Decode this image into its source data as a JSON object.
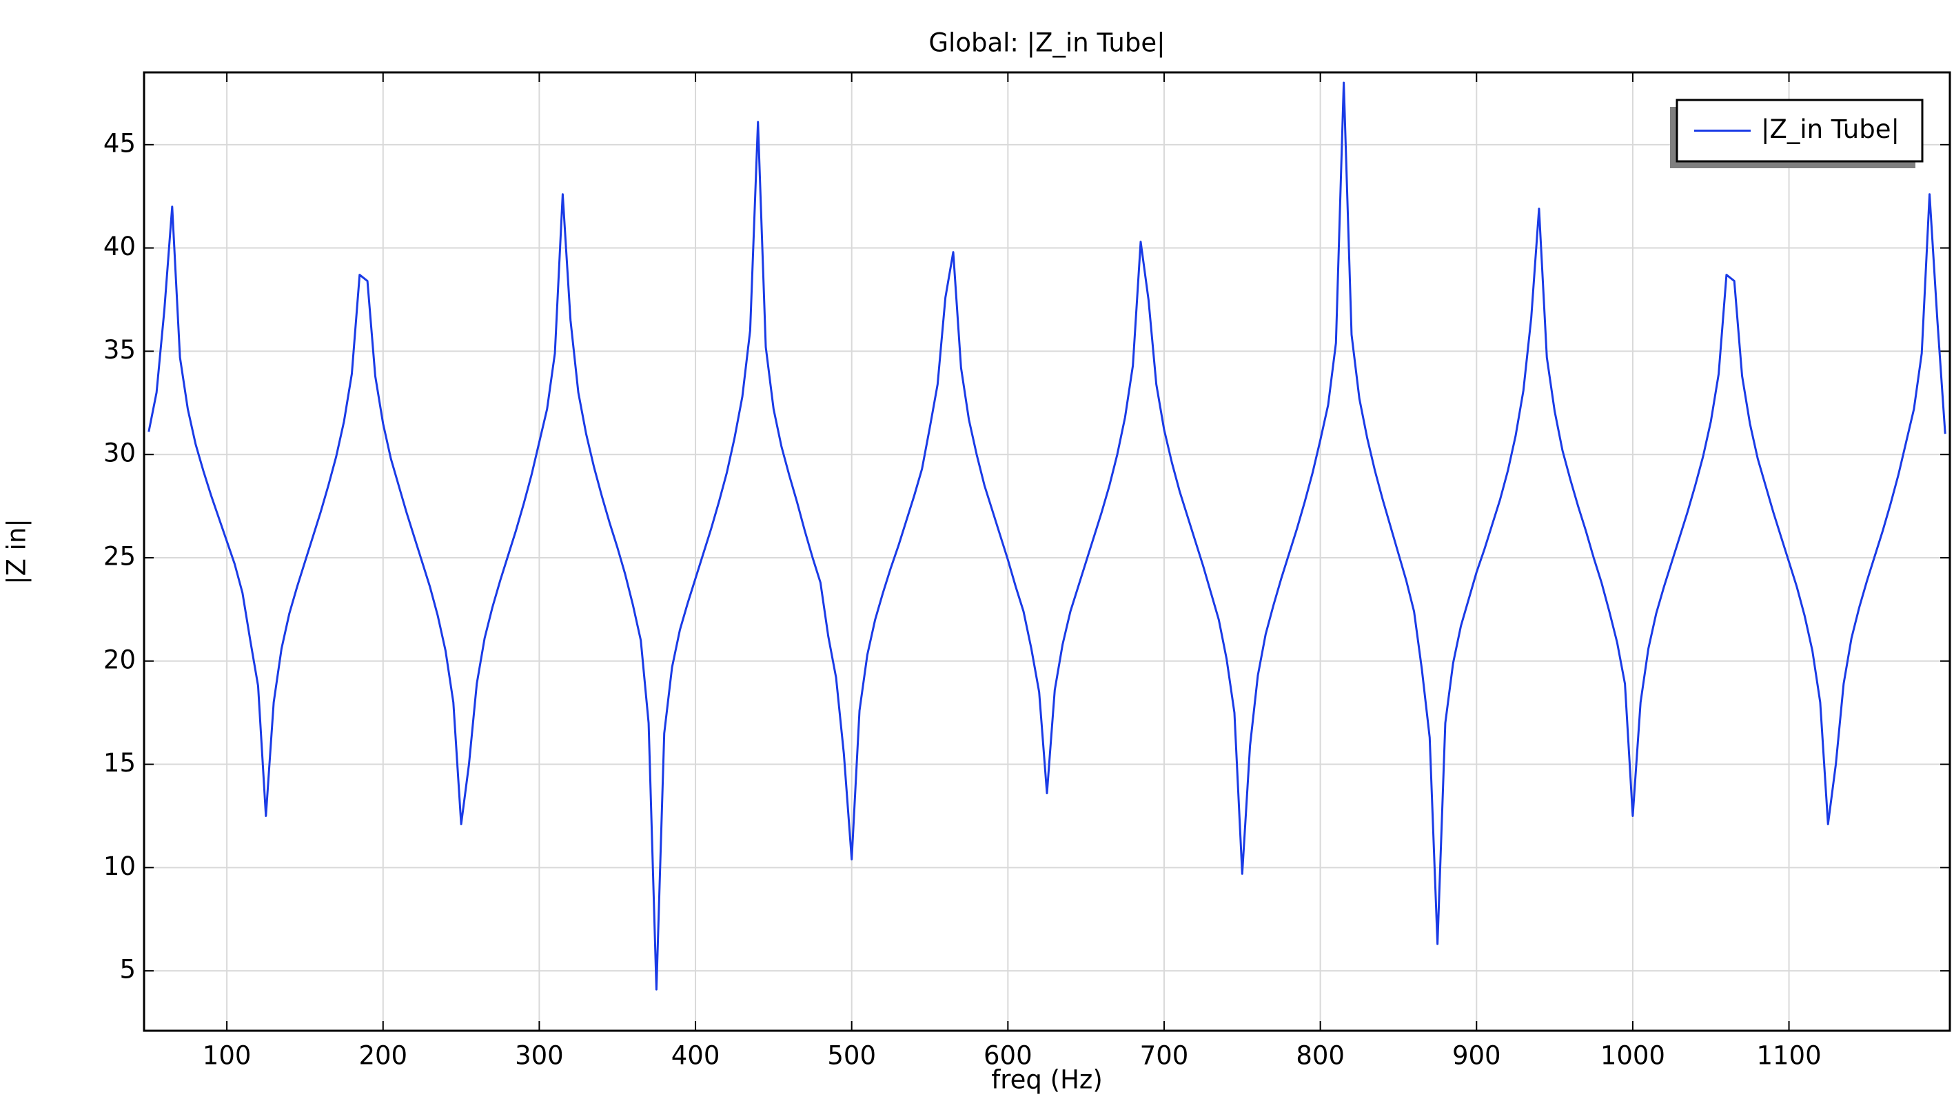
{
  "chart_data": {
    "type": "line",
    "title": "Global: |Z_in Tube|",
    "x_label": "freq (Hz)",
    "y_label": "|Z in|",
    "x": [
      50,
      55,
      60,
      65,
      70,
      75,
      80,
      85,
      90,
      95,
      100,
      105,
      110,
      115,
      120,
      125,
      130,
      135,
      140,
      145,
      150,
      155,
      160,
      165,
      170,
      175,
      180,
      185,
      190,
      195,
      200,
      205,
      210,
      215,
      220,
      225,
      230,
      235,
      240,
      245,
      250,
      255,
      260,
      265,
      270,
      275,
      280,
      285,
      290,
      295,
      300,
      305,
      310,
      315,
      320,
      325,
      330,
      335,
      340,
      345,
      350,
      355,
      360,
      365,
      370,
      375,
      380,
      385,
      390,
      395,
      400,
      405,
      410,
      415,
      420,
      425,
      430,
      435,
      440,
      445,
      450,
      455,
      460,
      465,
      470,
      475,
      480,
      485,
      490,
      495,
      500,
      505,
      510,
      515,
      520,
      525,
      530,
      535,
      540,
      545,
      550,
      555,
      560,
      565,
      570,
      575,
      580,
      585,
      590,
      595,
      600,
      605,
      610,
      615,
      620,
      625,
      630,
      635,
      640,
      645,
      650,
      655,
      660,
      665,
      670,
      675,
      680,
      685,
      690,
      695,
      700,
      705,
      710,
      715,
      720,
      725,
      730,
      735,
      740,
      745,
      750,
      755,
      760,
      765,
      770,
      775,
      780,
      785,
      790,
      795,
      800,
      805,
      810,
      815,
      820,
      825,
      830,
      835,
      840,
      845,
      850,
      855,
      860,
      865,
      870,
      875,
      880,
      885,
      890,
      895,
      900,
      905,
      910,
      915,
      920,
      925,
      930,
      935,
      940,
      945,
      950,
      955,
      960,
      965,
      970,
      975,
      980,
      985,
      990,
      995,
      1000,
      1005,
      1010,
      1015,
      1020,
      1025,
      1030,
      1035,
      1040,
      1045,
      1050,
      1055,
      1060,
      1065,
      1070,
      1075,
      1080,
      1085,
      1090,
      1095,
      1100,
      1105,
      1110,
      1115,
      1120,
      1125,
      1130,
      1135,
      1140,
      1145,
      1150,
      1155,
      1160,
      1165,
      1170,
      1175,
      1180,
      1185,
      1190,
      1195,
      1200
    ],
    "series": [
      {
        "name": "|Z_in Tube|",
        "color": "#1a3be6",
        "values": [
          31.1,
          33,
          37,
          42,
          34.7,
          32.2,
          30.5,
          29.2,
          28,
          26.9,
          25.8,
          24.7,
          23.3,
          21,
          18.8,
          12.5,
          18,
          20.6,
          22.3,
          23.6,
          24.8,
          26,
          27.2,
          28.5,
          29.9,
          31.6,
          33.9,
          38.7,
          38.4,
          33.8,
          31.5,
          29.8,
          28.5,
          27.2,
          26,
          24.8,
          23.6,
          22.2,
          20.5,
          18,
          12.1,
          15,
          18.9,
          21.1,
          22.6,
          23.9,
          25.1,
          26.3,
          27.6,
          29,
          30.6,
          32.2,
          34.9,
          42.6,
          36.5,
          33,
          31,
          29.4,
          28,
          26.7,
          25.5,
          24.2,
          22.7,
          21,
          17,
          4.1,
          16.5,
          19.7,
          21.5,
          22.8,
          24,
          25.2,
          26.4,
          27.7,
          29.1,
          30.8,
          32.8,
          36,
          46.1,
          35.2,
          32.2,
          30.4,
          29,
          27.7,
          26.3,
          25,
          23.8,
          21.2,
          19.2,
          15.5,
          10.4,
          17.6,
          20.3,
          22,
          23.3,
          24.5,
          25.6,
          26.8,
          28,
          29.3,
          31.3,
          33.4,
          37.6,
          39.8,
          34.2,
          31.7,
          30,
          28.5,
          27.3,
          26.1,
          24.9,
          23.6,
          22.4,
          20.6,
          18.5,
          13.6,
          18.6,
          20.8,
          22.4,
          23.6,
          24.8,
          26,
          27.2,
          28.5,
          30,
          31.8,
          34.3,
          40.3,
          37.5,
          33.4,
          31.2,
          29.6,
          28.2,
          27,
          25.8,
          24.6,
          23.3,
          22,
          20.1,
          17.5,
          9.7,
          15.9,
          19.3,
          21.3,
          22.7,
          24,
          25.2,
          26.4,
          27.7,
          29.1,
          30.7,
          32.4,
          35.4,
          48,
          35.8,
          32.7,
          30.8,
          29.2,
          27.8,
          26.5,
          25.2,
          23.9,
          22.4,
          19.6,
          16.3,
          6.3,
          17,
          19.9,
          21.7,
          23,
          24.3,
          25.4,
          26.6,
          27.8,
          29.2,
          30.9,
          33.1,
          36.6,
          41.9,
          34.7,
          32.1,
          30.2,
          28.8,
          27.5,
          26.3,
          25,
          23.8,
          22.4,
          20.9,
          18.9,
          12.5,
          18,
          20.6,
          22.3,
          23.6,
          24.8,
          26,
          27.2,
          28.5,
          29.9,
          31.6,
          33.9,
          38.7,
          38.4,
          33.8,
          31.5,
          29.8,
          28.5,
          27.2,
          26,
          24.8,
          23.6,
          22.2,
          20.5,
          18,
          12.1,
          15,
          18.9,
          21.1,
          22.6,
          23.9,
          25.1,
          26.3,
          27.6,
          29,
          30.6,
          32.2,
          34.9,
          42.6,
          36.5,
          31
        ]
      }
    ],
    "xlim": [
      47,
      1203
    ],
    "ylim": [
      2.1,
      48.5
    ],
    "xticks": [
      100,
      200,
      300,
      400,
      500,
      600,
      700,
      800,
      900,
      1000,
      1100
    ],
    "yticks": [
      5,
      10,
      15,
      20,
      25,
      30,
      35,
      40,
      45
    ],
    "grid": true,
    "legend": "upper right"
  }
}
